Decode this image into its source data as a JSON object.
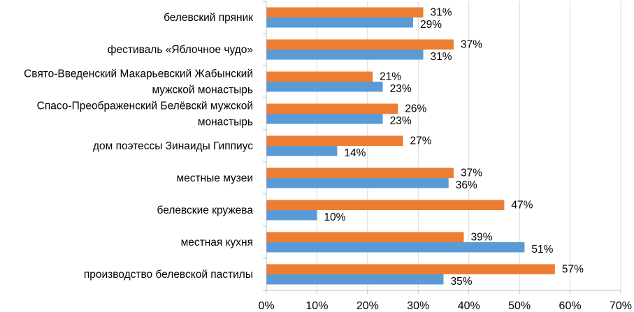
{
  "chart_data": {
    "type": "bar",
    "orientation": "horizontal",
    "categories": [
      "белевский пряник",
      "фестиваль «Яблочное чудо»",
      "Свято-Введенский Макарьевский Жабынский мужской монастырь",
      "Спасо-Преображенский Белёвскй мужской монастырь",
      "дом поэтессы Зинаиды Гиппиус",
      "местные музеи",
      "белевские кружева",
      "местная кухня",
      "производство белевской пастилы"
    ],
    "category_label_lines": [
      [
        "белевский пряник"
      ],
      [
        "фестиваль «Яблочное чудо»"
      ],
      [
        "Свято-Введенский Макарьевский Жабынский",
        "мужской монастырь"
      ],
      [
        "Спасо-Преображенский Белёвскй мужской",
        "монастырь"
      ],
      [
        "дом поэтессы Зинаиды Гиппиус"
      ],
      [
        "местные музеи"
      ],
      [
        "белевские кружева"
      ],
      [
        "местная кухня"
      ],
      [
        "производство белевской пастилы"
      ]
    ],
    "series": [
      {
        "color": "#ED7D31",
        "values": [
          31,
          37,
          21,
          26,
          27,
          37,
          47,
          39,
          57
        ]
      },
      {
        "color": "#5B9BD5",
        "values": [
          29,
          31,
          23,
          23,
          14,
          36,
          10,
          51,
          35
        ]
      }
    ],
    "value_labels": {
      "orange": [
        "31%",
        "37%",
        "21%",
        "26%",
        "27%",
        "37%",
        "47%",
        "39%",
        "57%"
      ],
      "blue": [
        "29%",
        "31%",
        "23%",
        "23%",
        "14%",
        "36%",
        "10%",
        "51%",
        "35%"
      ]
    },
    "xlim": [
      0,
      70
    ],
    "x_ticks": [
      0,
      10,
      20,
      30,
      40,
      50,
      60,
      70
    ],
    "x_tick_labels": [
      "0%",
      "10%",
      "20%",
      "30%",
      "40%",
      "50%",
      "60%",
      "70%"
    ],
    "grid": true,
    "legend": "none",
    "title": "",
    "xlabel": "",
    "ylabel": ""
  }
}
